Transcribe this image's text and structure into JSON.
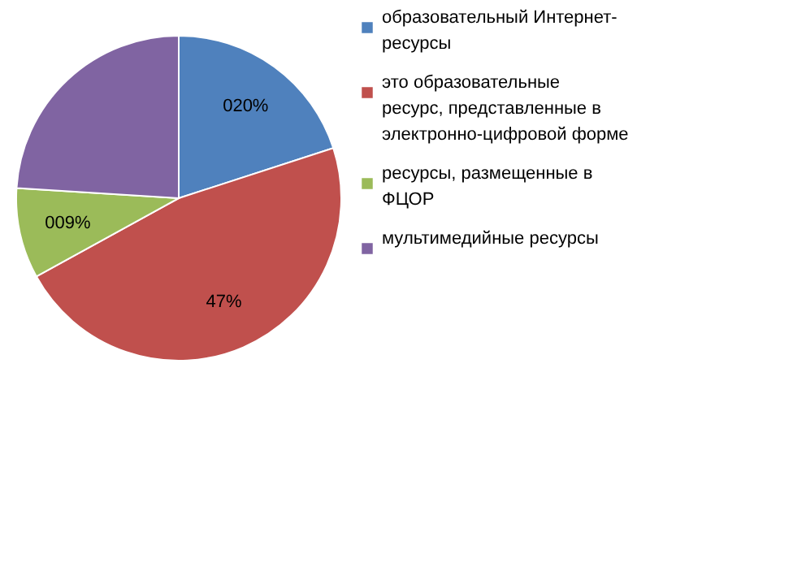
{
  "chart_data": {
    "type": "pie",
    "categories": [
      "образовательный Интернет-ресурсы",
      "это образовательные ресурс, представленные в электронно-цифровой форме",
      "ресурсы, размещенные в ФЦОР",
      "мультимедийные ресурсы"
    ],
    "values": [
      20,
      47,
      9,
      24
    ],
    "colors": [
      "#4f81bd",
      "#c0504d",
      "#9bbb59",
      "#8064a2"
    ],
    "value_labels": [
      "020%",
      "47%",
      "009%",
      null
    ],
    "legend": "right"
  }
}
